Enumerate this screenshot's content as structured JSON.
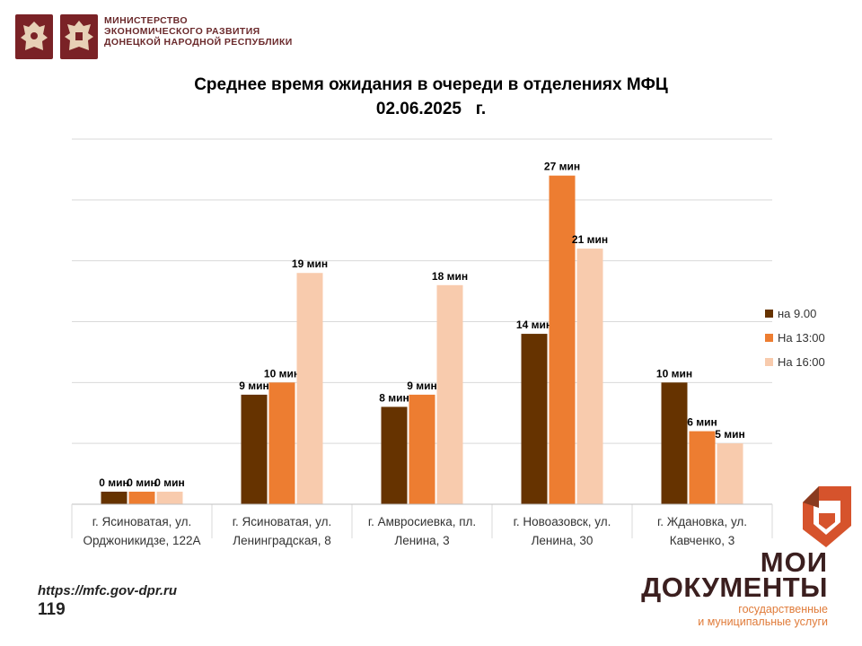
{
  "header": {
    "ministry_lines": [
      "МИНИСТЕРСТВО",
      "ЭКОНОМИЧЕСКОГО РАЗВИТИЯ",
      "ДОНЕЦКОЙ НАРОДНОЙ РЕСПУБЛИКИ"
    ],
    "emblem_color": "#7a2226"
  },
  "chart_data": {
    "type": "bar",
    "title": "Среднее время ожидания в очереди в отделениях МФЦ",
    "subtitle": "02.06.2025   г.",
    "categories": [
      [
        "г. Ясиноватая, ул.",
        "Орджоникидзе, 122А"
      ],
      [
        "г. Ясиноватая, ул.",
        "Ленинградская, 8"
      ],
      [
        "г. Амвросиевка, пл.",
        "Ленина, 3"
      ],
      [
        "г. Новоазовск, ул.",
        "Ленина, 30"
      ],
      [
        "г. Ждановка, ул.",
        "Кавченко, 3"
      ]
    ],
    "series": [
      {
        "name": "на 9.00",
        "color": "#663300",
        "values": [
          0,
          9,
          8,
          14,
          10
        ],
        "labels": [
          "0 мин",
          "9 мин",
          "8 мин",
          "14 мин",
          "10 мин"
        ]
      },
      {
        "name": "На 13:00",
        "color": "#ed7d31",
        "values": [
          0,
          10,
          9,
          27,
          6
        ],
        "labels": [
          "0 мин",
          "10  мин",
          "9 мин",
          "27 мин",
          "6 мин"
        ]
      },
      {
        "name": "На 16:00",
        "color": "#f8cbad",
        "values": [
          0,
          19,
          18,
          21,
          5
        ],
        "labels": [
          "0 мин",
          "19 мин",
          "18 мин",
          "21 мин",
          "5 мин"
        ]
      }
    ],
    "ylim": [
      0,
      30
    ],
    "grid": true,
    "legend_position": "right"
  },
  "footer": {
    "url": "https://mfc.gov-dpr.ru",
    "page_number": "119",
    "brand_line1": "МОИ",
    "brand_line2": "ДОКУМЕНТЫ",
    "brand_line3": "государственные",
    "brand_line4": "и муниципальные услуги",
    "brand_color": "#e07b39",
    "brand_dark": "#3b1f1f"
  }
}
